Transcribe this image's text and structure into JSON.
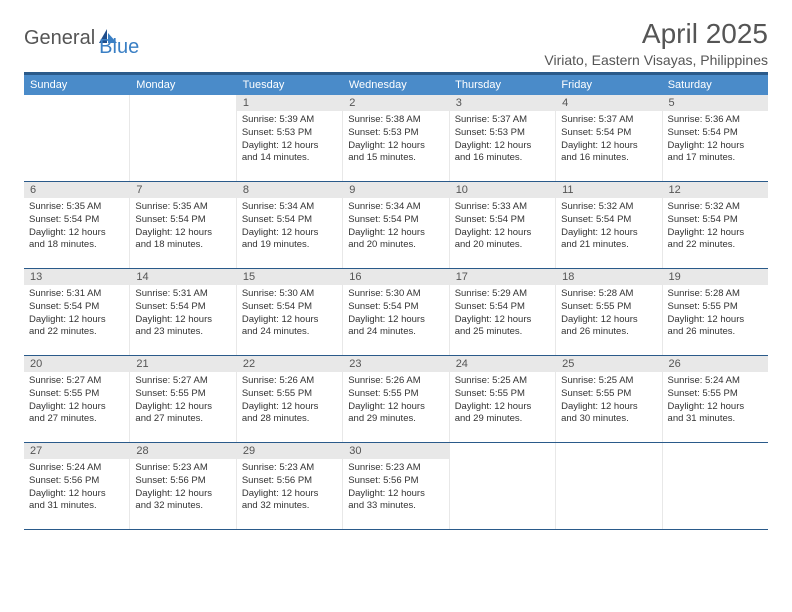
{
  "logo": {
    "text1": "General",
    "text2": "Blue"
  },
  "title": "April 2025",
  "location": "Viriato, Eastern Visayas, Philippines",
  "colors": {
    "header_bar": "#4a8bc9",
    "border_top": "#2a5a8a",
    "day_num_bg": "#e8e8e8",
    "text_gray": "#555555"
  },
  "day_headers": [
    "Sunday",
    "Monday",
    "Tuesday",
    "Wednesday",
    "Thursday",
    "Friday",
    "Saturday"
  ],
  "weeks": [
    [
      null,
      null,
      {
        "n": "1",
        "sr": "Sunrise: 5:39 AM",
        "ss": "Sunset: 5:53 PM",
        "dl1": "Daylight: 12 hours",
        "dl2": "and 14 minutes."
      },
      {
        "n": "2",
        "sr": "Sunrise: 5:38 AM",
        "ss": "Sunset: 5:53 PM",
        "dl1": "Daylight: 12 hours",
        "dl2": "and 15 minutes."
      },
      {
        "n": "3",
        "sr": "Sunrise: 5:37 AM",
        "ss": "Sunset: 5:53 PM",
        "dl1": "Daylight: 12 hours",
        "dl2": "and 16 minutes."
      },
      {
        "n": "4",
        "sr": "Sunrise: 5:37 AM",
        "ss": "Sunset: 5:54 PM",
        "dl1": "Daylight: 12 hours",
        "dl2": "and 16 minutes."
      },
      {
        "n": "5",
        "sr": "Sunrise: 5:36 AM",
        "ss": "Sunset: 5:54 PM",
        "dl1": "Daylight: 12 hours",
        "dl2": "and 17 minutes."
      }
    ],
    [
      {
        "n": "6",
        "sr": "Sunrise: 5:35 AM",
        "ss": "Sunset: 5:54 PM",
        "dl1": "Daylight: 12 hours",
        "dl2": "and 18 minutes."
      },
      {
        "n": "7",
        "sr": "Sunrise: 5:35 AM",
        "ss": "Sunset: 5:54 PM",
        "dl1": "Daylight: 12 hours",
        "dl2": "and 18 minutes."
      },
      {
        "n": "8",
        "sr": "Sunrise: 5:34 AM",
        "ss": "Sunset: 5:54 PM",
        "dl1": "Daylight: 12 hours",
        "dl2": "and 19 minutes."
      },
      {
        "n": "9",
        "sr": "Sunrise: 5:34 AM",
        "ss": "Sunset: 5:54 PM",
        "dl1": "Daylight: 12 hours",
        "dl2": "and 20 minutes."
      },
      {
        "n": "10",
        "sr": "Sunrise: 5:33 AM",
        "ss": "Sunset: 5:54 PM",
        "dl1": "Daylight: 12 hours",
        "dl2": "and 20 minutes."
      },
      {
        "n": "11",
        "sr": "Sunrise: 5:32 AM",
        "ss": "Sunset: 5:54 PM",
        "dl1": "Daylight: 12 hours",
        "dl2": "and 21 minutes."
      },
      {
        "n": "12",
        "sr": "Sunrise: 5:32 AM",
        "ss": "Sunset: 5:54 PM",
        "dl1": "Daylight: 12 hours",
        "dl2": "and 22 minutes."
      }
    ],
    [
      {
        "n": "13",
        "sr": "Sunrise: 5:31 AM",
        "ss": "Sunset: 5:54 PM",
        "dl1": "Daylight: 12 hours",
        "dl2": "and 22 minutes."
      },
      {
        "n": "14",
        "sr": "Sunrise: 5:31 AM",
        "ss": "Sunset: 5:54 PM",
        "dl1": "Daylight: 12 hours",
        "dl2": "and 23 minutes."
      },
      {
        "n": "15",
        "sr": "Sunrise: 5:30 AM",
        "ss": "Sunset: 5:54 PM",
        "dl1": "Daylight: 12 hours",
        "dl2": "and 24 minutes."
      },
      {
        "n": "16",
        "sr": "Sunrise: 5:30 AM",
        "ss": "Sunset: 5:54 PM",
        "dl1": "Daylight: 12 hours",
        "dl2": "and 24 minutes."
      },
      {
        "n": "17",
        "sr": "Sunrise: 5:29 AM",
        "ss": "Sunset: 5:54 PM",
        "dl1": "Daylight: 12 hours",
        "dl2": "and 25 minutes."
      },
      {
        "n": "18",
        "sr": "Sunrise: 5:28 AM",
        "ss": "Sunset: 5:55 PM",
        "dl1": "Daylight: 12 hours",
        "dl2": "and 26 minutes."
      },
      {
        "n": "19",
        "sr": "Sunrise: 5:28 AM",
        "ss": "Sunset: 5:55 PM",
        "dl1": "Daylight: 12 hours",
        "dl2": "and 26 minutes."
      }
    ],
    [
      {
        "n": "20",
        "sr": "Sunrise: 5:27 AM",
        "ss": "Sunset: 5:55 PM",
        "dl1": "Daylight: 12 hours",
        "dl2": "and 27 minutes."
      },
      {
        "n": "21",
        "sr": "Sunrise: 5:27 AM",
        "ss": "Sunset: 5:55 PM",
        "dl1": "Daylight: 12 hours",
        "dl2": "and 27 minutes."
      },
      {
        "n": "22",
        "sr": "Sunrise: 5:26 AM",
        "ss": "Sunset: 5:55 PM",
        "dl1": "Daylight: 12 hours",
        "dl2": "and 28 minutes."
      },
      {
        "n": "23",
        "sr": "Sunrise: 5:26 AM",
        "ss": "Sunset: 5:55 PM",
        "dl1": "Daylight: 12 hours",
        "dl2": "and 29 minutes."
      },
      {
        "n": "24",
        "sr": "Sunrise: 5:25 AM",
        "ss": "Sunset: 5:55 PM",
        "dl1": "Daylight: 12 hours",
        "dl2": "and 29 minutes."
      },
      {
        "n": "25",
        "sr": "Sunrise: 5:25 AM",
        "ss": "Sunset: 5:55 PM",
        "dl1": "Daylight: 12 hours",
        "dl2": "and 30 minutes."
      },
      {
        "n": "26",
        "sr": "Sunrise: 5:24 AM",
        "ss": "Sunset: 5:55 PM",
        "dl1": "Daylight: 12 hours",
        "dl2": "and 31 minutes."
      }
    ],
    [
      {
        "n": "27",
        "sr": "Sunrise: 5:24 AM",
        "ss": "Sunset: 5:56 PM",
        "dl1": "Daylight: 12 hours",
        "dl2": "and 31 minutes."
      },
      {
        "n": "28",
        "sr": "Sunrise: 5:23 AM",
        "ss": "Sunset: 5:56 PM",
        "dl1": "Daylight: 12 hours",
        "dl2": "and 32 minutes."
      },
      {
        "n": "29",
        "sr": "Sunrise: 5:23 AM",
        "ss": "Sunset: 5:56 PM",
        "dl1": "Daylight: 12 hours",
        "dl2": "and 32 minutes."
      },
      {
        "n": "30",
        "sr": "Sunrise: 5:23 AM",
        "ss": "Sunset: 5:56 PM",
        "dl1": "Daylight: 12 hours",
        "dl2": "and 33 minutes."
      },
      null,
      null,
      null
    ]
  ]
}
